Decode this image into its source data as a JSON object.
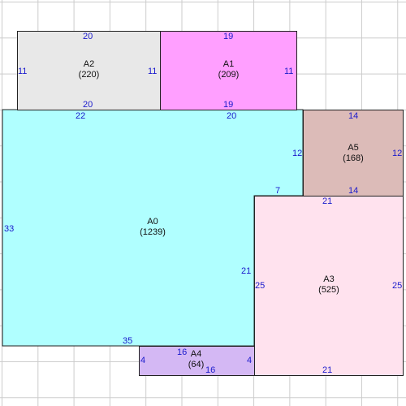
{
  "colors": {
    "grid": "#cccccc",
    "wall": "#222222",
    "dimension_text": "#1a1acc",
    "A0": "#b0ffff",
    "A1": "#ff9fff",
    "A2": "#e8e8e8",
    "A3": "#ffe2ee",
    "A4": "#d4b8f4",
    "A5": "#dcbbb8"
  },
  "rooms": {
    "A0": {
      "name": "A0",
      "area": "(1239)"
    },
    "A1": {
      "name": "A1",
      "area": "(209)"
    },
    "A2": {
      "name": "A2",
      "area": "(220)"
    },
    "A3": {
      "name": "A3",
      "area": "(525)"
    },
    "A4": {
      "name": "A4",
      "area": "(64)"
    },
    "A5": {
      "name": "A5",
      "area": "(168)"
    }
  },
  "dimensions": {
    "A2_top": "20",
    "A2_bottom": "20",
    "A2_left": "11",
    "A2_right": "11",
    "A1_top": "19",
    "A1_bottom": "19",
    "A1_right": "11",
    "A0_top_left": "22",
    "A0_top_right": "20",
    "A0_left": "33",
    "A0_right_upper": "12",
    "A0_step": "7",
    "A0_right_lower": "21",
    "A0_bottom": "35",
    "A5_top": "14",
    "A5_bottom": "14",
    "A5_right": "12",
    "A3_top": "21",
    "A3_bottom": "21",
    "A3_left": "25",
    "A3_right": "25",
    "A4_top": "16",
    "A4_bottom": "16",
    "A4_left": "4",
    "A4_right": "4"
  }
}
